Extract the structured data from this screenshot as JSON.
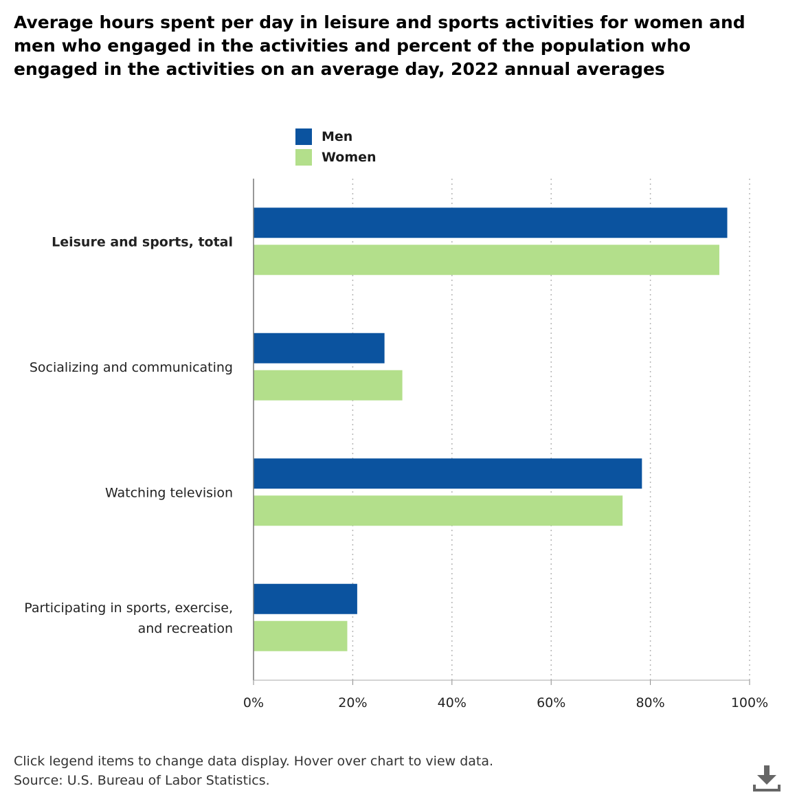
{
  "title": "Average hours spent per day in leisure and sports activities for women and men who engaged in the activities and percent of the population who engaged in the activities on an average day, 2022 annual averages",
  "legend": [
    {
      "label": "Men",
      "color": "#0b539f"
    },
    {
      "label": "Women",
      "color": "#b3df8b"
    }
  ],
  "notes": {
    "instructions": "Click legend items to change data display. Hover over chart to view data.",
    "source": "Source: U.S. Bureau of Labor Statistics."
  },
  "download_icon": "download-icon",
  "chart_data": {
    "type": "bar",
    "orientation": "horizontal",
    "categories": [
      "Leisure and sports, total",
      "Socializing and communicating",
      "Watching television",
      "Participating in sports, exercise, and recreation"
    ],
    "category_bold": [
      true,
      false,
      false,
      false
    ],
    "series": [
      {
        "name": "Men",
        "color": "#0b539f",
        "values": [
          95.5,
          26.4,
          78.3,
          20.9
        ]
      },
      {
        "name": "Women",
        "color": "#b3df8b",
        "values": [
          93.9,
          30.0,
          74.4,
          18.9
        ]
      }
    ],
    "xlim": [
      0,
      100
    ],
    "xticks": [
      "0%",
      "20%",
      "40%",
      "60%",
      "80%",
      "100%"
    ],
    "grid": "vertical dotted",
    "legend_position": "top"
  }
}
